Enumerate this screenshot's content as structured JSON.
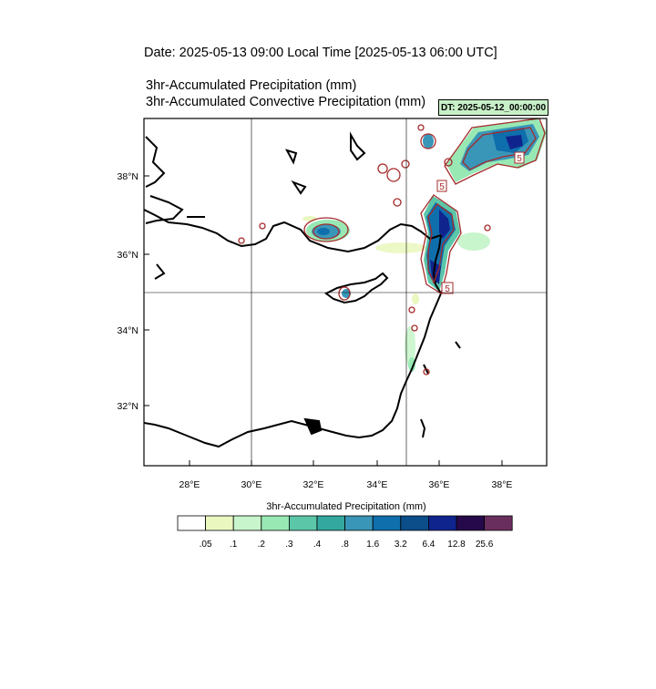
{
  "header": {
    "date_line": "Date: 2025-05-13  09:00 Local Time [2025-05-13  06:00 UTC]",
    "field_1": "3hr-Accumulated Precipitation   (mm)",
    "field_2": "3hr-Accumulated Convective Precipitation   (mm)",
    "dt_badge": "DT: 2025-05-12_00:00:00"
  },
  "map": {
    "region": "Eastern Mediterranean",
    "lon_ticks": [
      "28°E",
      "30°E",
      "32°E",
      "34°E",
      "36°E",
      "38°E"
    ],
    "lat_ticks": [
      "32°N",
      "34°N",
      "36°N",
      "38°N"
    ],
    "contour_labels": [
      "5",
      "5",
      "5"
    ],
    "colors": {
      "coast": "#000000",
      "convective_contour": "#a52a2a",
      "grid": "#000000"
    }
  },
  "legend": {
    "title": "3hr-Accumulated Precipitation  (mm)",
    "labels": [
      ".05",
      ".1",
      ".2",
      ".3",
      ".4",
      ".8",
      "1.6",
      "3.2",
      "6.4",
      "12.8",
      "25.6"
    ],
    "colors": [
      "#ffffff",
      "#eaf8c0",
      "#c8f5cc",
      "#98e8b4",
      "#5cc6a8",
      "#33a89e",
      "#3a96b8",
      "#0f6eac",
      "#0c4e8a",
      "#10248e",
      "#26094a",
      "#6a2e5e"
    ]
  }
}
